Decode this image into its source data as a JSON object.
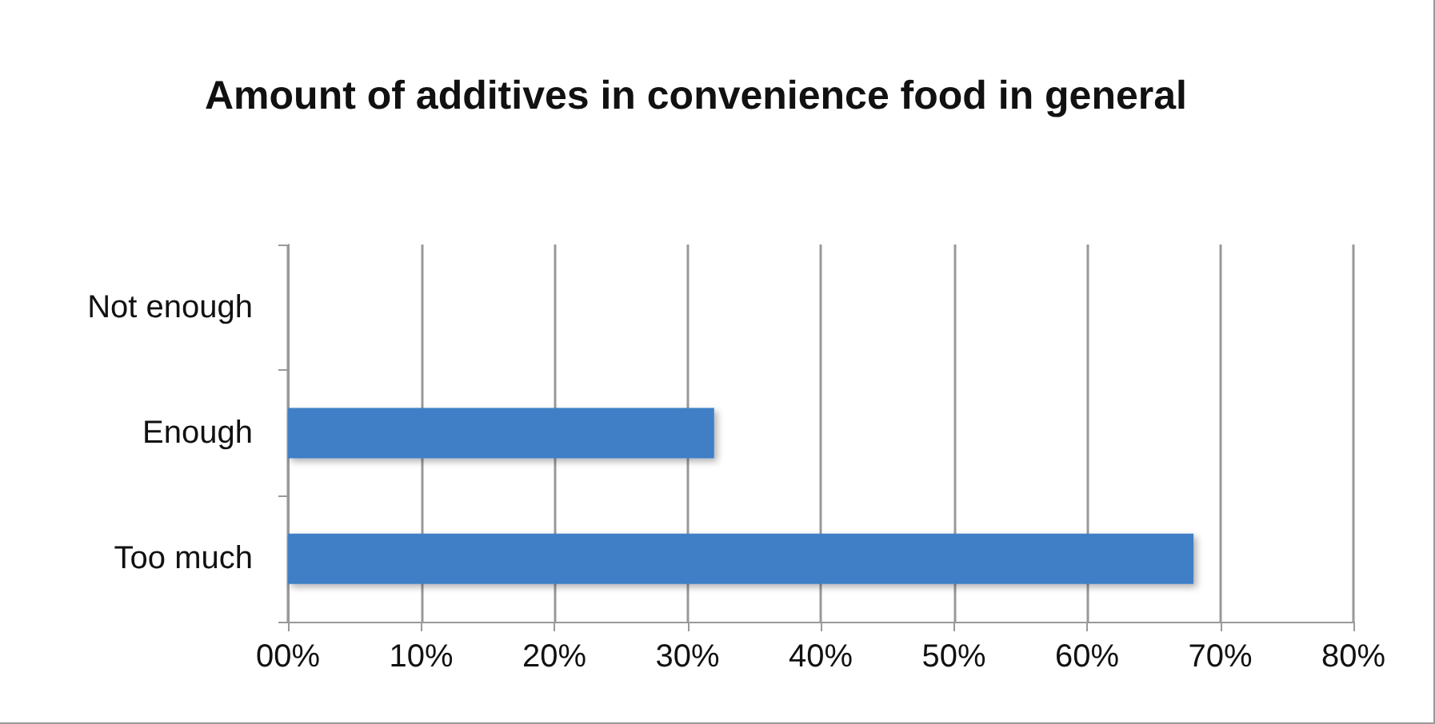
{
  "chart_data": {
    "type": "bar",
    "orientation": "horizontal",
    "title": "Amount of additives in convenience food in general",
    "categories": [
      "Not enough",
      "Enough",
      "Too much"
    ],
    "values": [
      0,
      32,
      68
    ],
    "color": "#3f7fc6",
    "xlim": [
      0,
      80
    ],
    "xticks": [
      {
        "value": 0,
        "label": "00%"
      },
      {
        "value": 10,
        "label": "10%"
      },
      {
        "value": 20,
        "label": "20%"
      },
      {
        "value": 30,
        "label": "30%"
      },
      {
        "value": 40,
        "label": "40%"
      },
      {
        "value": 50,
        "label": "50%"
      },
      {
        "value": 60,
        "label": "60%"
      },
      {
        "value": 70,
        "label": "70%"
      },
      {
        "value": 80,
        "label": "80%"
      }
    ],
    "grid": "x"
  }
}
